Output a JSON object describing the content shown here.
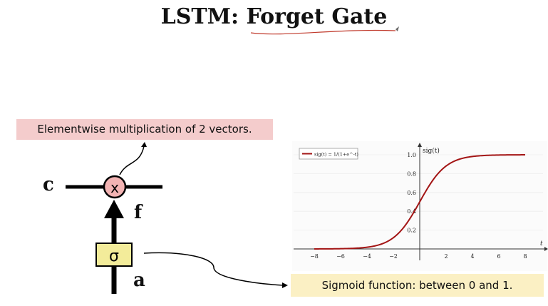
{
  "title": "LSTM: Forget Gate",
  "annotations": {
    "multiplication": "Elementwise multiplication of 2 vectors.",
    "sigmoid": "Sigmoid function: between 0 and 1."
  },
  "diagram": {
    "label_c": "c",
    "label_f": "f",
    "label_a": "a",
    "multiply_symbol": "x",
    "sigma_symbol": "σ"
  },
  "chart_data": {
    "type": "line",
    "legend": "sig(t) = 1/(1+e^-t)",
    "ylabel": "sig(t)",
    "xlabel": "t",
    "xlim": [
      -9,
      9
    ],
    "ylim": [
      0,
      1.1
    ],
    "x_ticks": [
      -8,
      -6,
      -4,
      -2,
      2,
      4,
      6,
      8
    ],
    "y_ticks": [
      0.2,
      0.4,
      0.6,
      0.8,
      1.0
    ],
    "x_tick_labels": [
      "−8",
      "−6",
      "−4",
      "−2",
      "2",
      "4",
      "6",
      "8"
    ],
    "y_tick_labels": [
      "0.2",
      "0.4",
      "0.6",
      "0.8",
      "1.0"
    ],
    "series": [
      {
        "values_function": "1/(1+exp(-t))",
        "t_range": [
          -8,
          8
        ],
        "color": "#a31515"
      }
    ]
  }
}
